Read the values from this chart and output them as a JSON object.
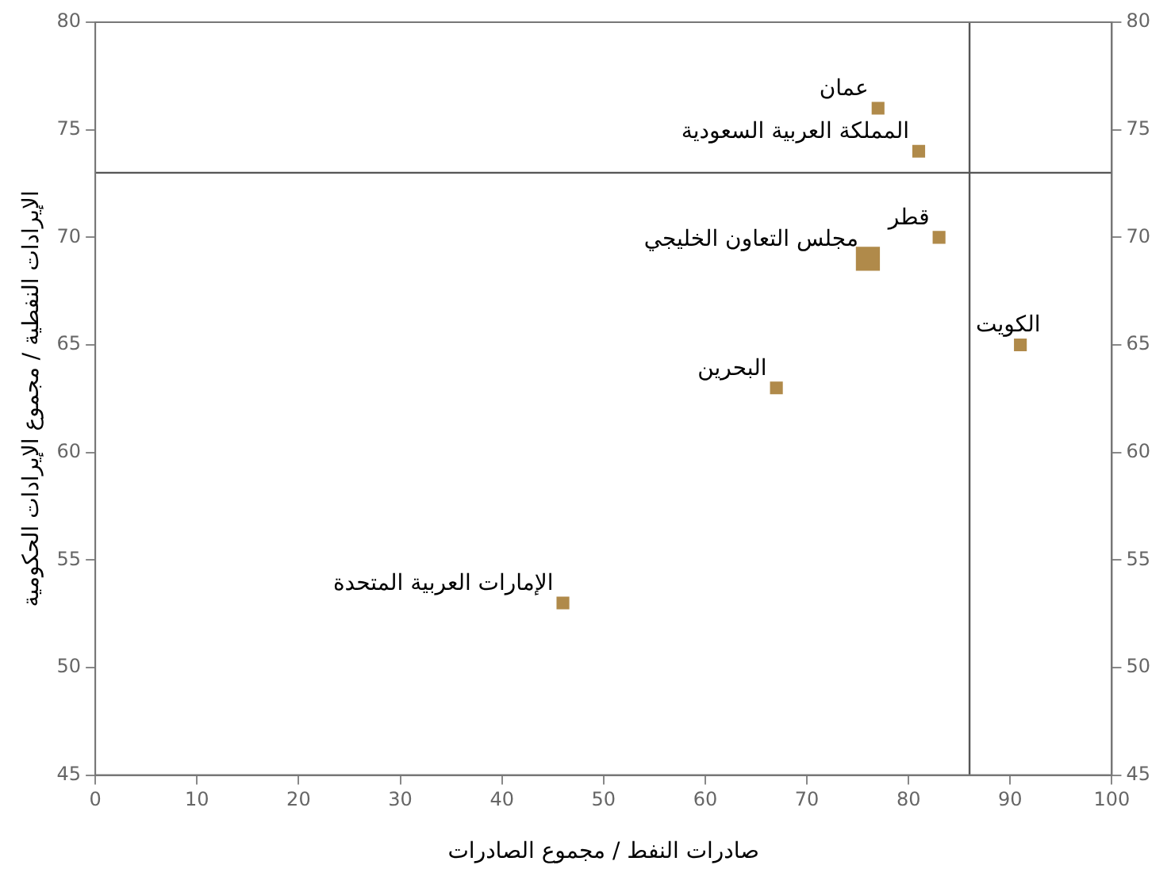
{
  "chart_data": {
    "type": "bubble",
    "xlabel": "صادرات النفط / مجموع الصادرات",
    "ylabel": "الإيرادات النفطية / مجموع الإيرادات الحكومية",
    "x": [
      46,
      67,
      76,
      77,
      81,
      83,
      91
    ],
    "series": [
      {
        "color": "#b08a4a",
        "values": [
          53,
          63,
          69,
          76,
          74,
          70,
          65
        ],
        "sizes": [
          0.25,
          0.25,
          1,
          0.25,
          0.25,
          0.25,
          0.25
        ]
      }
    ],
    "xlim": [
      0,
      100
    ],
    "xticks": [
      0,
      10,
      20,
      30,
      40,
      50,
      60,
      70,
      80,
      90,
      100
    ],
    "ylim": [
      45,
      80
    ],
    "yticks": [
      45,
      50,
      55,
      60,
      65,
      70,
      75,
      80
    ],
    "y2lim": [
      45,
      80
    ],
    "y2ticks": [
      45,
      50,
      55,
      60,
      65,
      70,
      75,
      80
    ],
    "marker": "square",
    "grid": false,
    "legend": false,
    "ref_lines": [
      {
        "axis": "y",
        "value": 73,
        "color": "#555555"
      },
      {
        "axis": "x",
        "value": 86,
        "color": "#555555"
      }
    ],
    "annotations": [
      {
        "text": "الإمارات العربية المتحدة",
        "x": 46,
        "y": 53
      },
      {
        "text": "البحرين",
        "x": 67,
        "y": 63
      },
      {
        "text": "مجلس التعاون الخليجي",
        "x": 76,
        "y": 69
      },
      {
        "text": "عمان",
        "x": 77,
        "y": 76
      },
      {
        "text": "المملكة العربية السعودية",
        "x": 81,
        "y": 74
      },
      {
        "text": "قطر",
        "x": 83,
        "y": 70
      },
      {
        "text": "الكويت",
        "x": 91,
        "y": 65
      }
    ]
  }
}
